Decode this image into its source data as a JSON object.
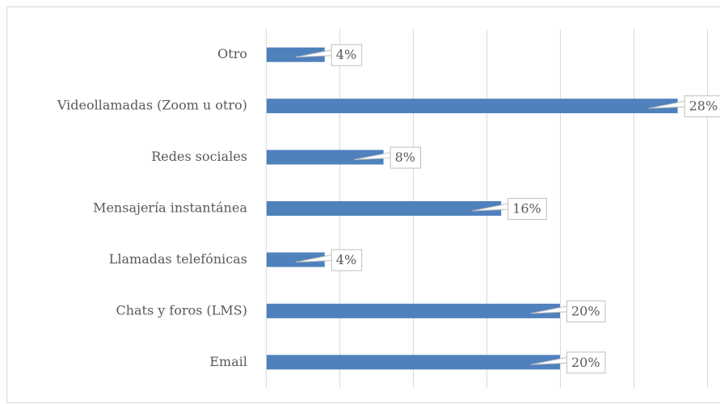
{
  "chart_data": {
    "type": "bar",
    "orientation": "horizontal",
    "categories": [
      "Otro",
      "Videollamadas (Zoom u otro)",
      "Redes sociales",
      "Mensajería instantánea",
      "Llamadas telefónicas",
      "Chats y foros (LMS)",
      "Email"
    ],
    "values": [
      4,
      28,
      8,
      16,
      4,
      20,
      20
    ],
    "value_labels": [
      "4%",
      "28%",
      "8%",
      "16%",
      "4%",
      "20%",
      "20%"
    ],
    "color": "#4f81bd",
    "xlim": [
      0,
      30
    ],
    "xticks": [
      0,
      5,
      10,
      15,
      20,
      25,
      30
    ],
    "grid": true
  }
}
